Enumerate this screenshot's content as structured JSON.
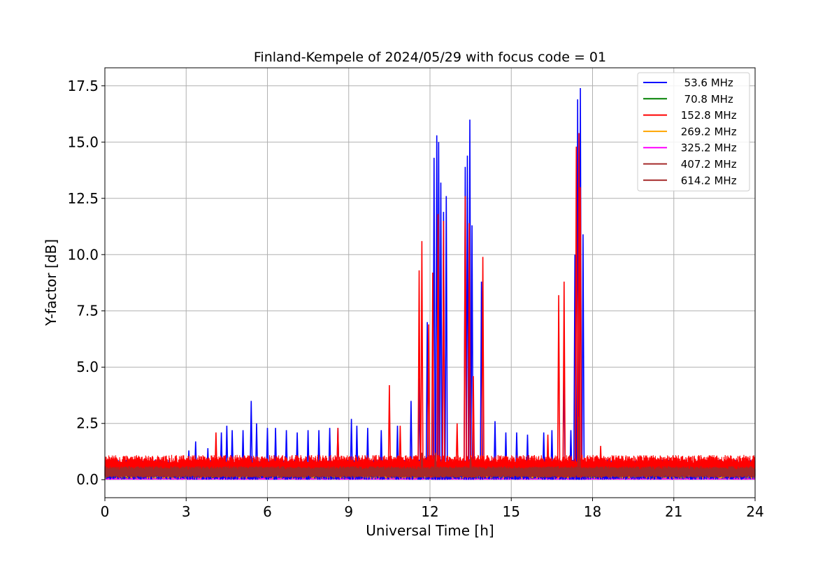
{
  "chart_data": {
    "type": "line",
    "title": "Finland-Kempele of 2024/05/29 with focus code = 01",
    "xlabel": "Universal Time [h]",
    "ylabel": "Y-factor [dB]",
    "xlim": [
      0,
      24
    ],
    "ylim": [
      -0.8,
      18.3
    ],
    "xticks": [
      0,
      3,
      6,
      9,
      12,
      15,
      18,
      21,
      24
    ],
    "xtick_labels": [
      "0",
      "3",
      "6",
      "9",
      "12",
      "15",
      "18",
      "21",
      "24"
    ],
    "yticks": [
      0.0,
      2.5,
      5.0,
      7.5,
      10.0,
      12.5,
      15.0,
      17.5
    ],
    "ytick_labels": [
      "0.0",
      "2.5",
      "5.0",
      "7.5",
      "10.0",
      "12.5",
      "15.0",
      "17.5"
    ],
    "grid": true,
    "legend_position": "top-right",
    "series": [
      {
        "name": "  53.6 MHz",
        "color": "#0000ff",
        "baseline": [
          0.0,
          0.9
        ],
        "x": [
          3.1,
          3.35,
          3.8,
          4.3,
          4.5,
          4.7,
          5.1,
          5.4,
          5.6,
          6.0,
          6.3,
          6.7,
          7.1,
          7.5,
          7.9,
          8.3,
          8.6,
          9.1,
          9.3,
          9.7,
          10.2,
          10.8,
          11.3,
          11.6,
          11.9,
          12.15,
          12.25,
          12.32,
          12.4,
          12.5,
          12.6,
          13.3,
          13.38,
          13.47,
          13.55,
          13.9,
          14.4,
          14.8,
          15.2,
          15.6,
          16.2,
          16.5,
          16.95,
          17.2,
          17.35,
          17.45,
          17.55,
          17.65,
          18.4
        ],
        "y": [
          1.3,
          1.7,
          1.4,
          2.1,
          2.4,
          2.2,
          2.2,
          3.5,
          2.5,
          2.3,
          2.3,
          2.2,
          2.1,
          2.2,
          2.2,
          2.3,
          2.3,
          2.7,
          2.4,
          2.3,
          2.2,
          2.4,
          3.5,
          4.5,
          7.0,
          14.3,
          15.3,
          15.0,
          13.2,
          11.9,
          12.6,
          13.9,
          14.4,
          16.0,
          11.3,
          8.8,
          2.6,
          2.1,
          2.1,
          2.0,
          2.1,
          2.2,
          5.5,
          2.2,
          10.0,
          16.9,
          17.4,
          10.9,
          0.5
        ]
      },
      {
        "name": "  70.8 MHz",
        "color": "#008000",
        "baseline": [
          0.05,
          0.3
        ],
        "x": [],
        "y": []
      },
      {
        "name": " 152.8 MHz",
        "color": "#ff0000",
        "baseline": [
          0.1,
          1.1
        ],
        "x": [
          4.1,
          8.6,
          10.5,
          10.9,
          11.6,
          11.7,
          11.95,
          12.1,
          12.3,
          12.5,
          13.0,
          13.3,
          13.45,
          13.6,
          13.95,
          16.35,
          16.75,
          16.95,
          17.4,
          17.5,
          17.55,
          18.3
        ],
        "y": [
          2.1,
          2.3,
          4.2,
          2.4,
          9.3,
          10.6,
          6.9,
          9.2,
          11.8,
          11.5,
          2.5,
          12.6,
          11.4,
          4.6,
          9.9,
          2.0,
          8.2,
          8.8,
          14.8,
          15.4,
          13.0,
          1.5
        ]
      },
      {
        "name": " 269.2 MHz",
        "color": "#ffa500",
        "baseline": [
          0.05,
          0.35
        ],
        "x": [
          6.2,
          10.7,
          17.5
        ],
        "y": [
          0.7,
          0.6,
          3.1
        ]
      },
      {
        "name": " 325.2 MHz",
        "color": "#ff00ff",
        "baseline": [
          0.0,
          0.1
        ],
        "x": [],
        "y": []
      },
      {
        "name": " 407.2 MHz",
        "color": "#a52a2a",
        "baseline": [
          0.1,
          0.55
        ],
        "x": [
          11.7,
          13.5,
          17.5
        ],
        "y": [
          1.2,
          1.0,
          2.7
        ]
      },
      {
        "name": " 614.2 MHz",
        "color": "#a52a2a",
        "baseline": [
          0.1,
          0.6
        ],
        "x": [
          12.2,
          17.5
        ],
        "y": [
          1.2,
          2.8
        ]
      }
    ]
  }
}
